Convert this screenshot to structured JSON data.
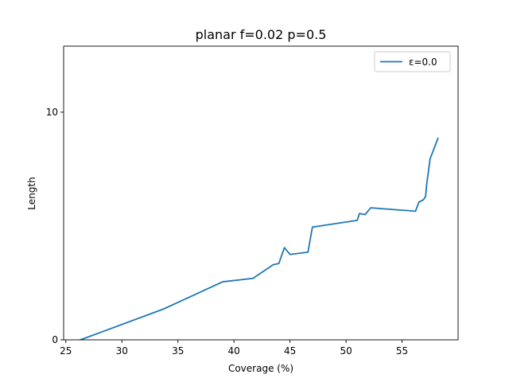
{
  "chart_data": {
    "type": "line",
    "title": "planar f=0.02 p=0.5",
    "xlabel": "Coverage (%)",
    "ylabel": "Length",
    "xlim": [
      24.8,
      60.0
    ],
    "ylim": [
      0,
      12.9
    ],
    "xticks": [
      25,
      30,
      35,
      40,
      45,
      50,
      55
    ],
    "yticks": [
      0,
      10
    ],
    "legend_position": "top-right",
    "grid": false,
    "series": [
      {
        "name": "ε=0.0",
        "color": "#1f77b4",
        "x": [
          26.3,
          33.7,
          39.0,
          41.7,
          43.5,
          44.0,
          44.5,
          45.0,
          46.6,
          47.0,
          51.0,
          51.2,
          51.7,
          52.2,
          56.2,
          56.5,
          56.9,
          57.1,
          57.2,
          57.5,
          58.2
        ],
        "y": [
          0.0,
          1.35,
          2.55,
          2.7,
          3.3,
          3.35,
          4.05,
          3.75,
          3.85,
          4.95,
          5.25,
          5.55,
          5.5,
          5.8,
          5.65,
          6.05,
          6.15,
          6.3,
          6.85,
          7.95,
          8.85
        ]
      }
    ]
  }
}
